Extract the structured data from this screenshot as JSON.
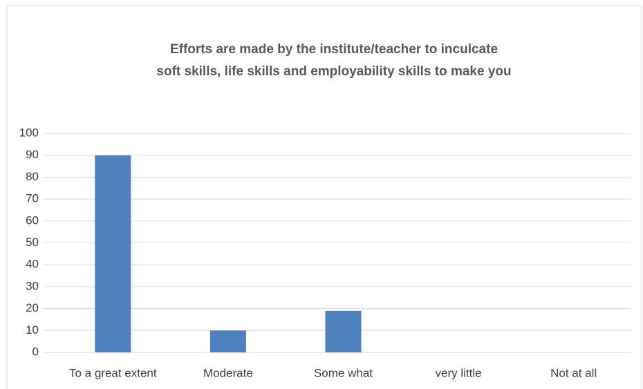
{
  "chart_data": {
    "type": "bar",
    "title": [
      "Efforts are made by the institute/teacher to inculcate",
      "soft skills, life skills and employability skills to make you"
    ],
    "categories": [
      "To a great extent",
      "Moderate",
      "Some what",
      "very little",
      "Not at all"
    ],
    "values": [
      90,
      10,
      19,
      0,
      0
    ],
    "color": "#4f81bd",
    "ylim": [
      0,
      100
    ],
    "yticks": [
      0,
      10,
      20,
      30,
      40,
      50,
      60,
      70,
      80,
      90,
      100
    ],
    "grid": true
  }
}
